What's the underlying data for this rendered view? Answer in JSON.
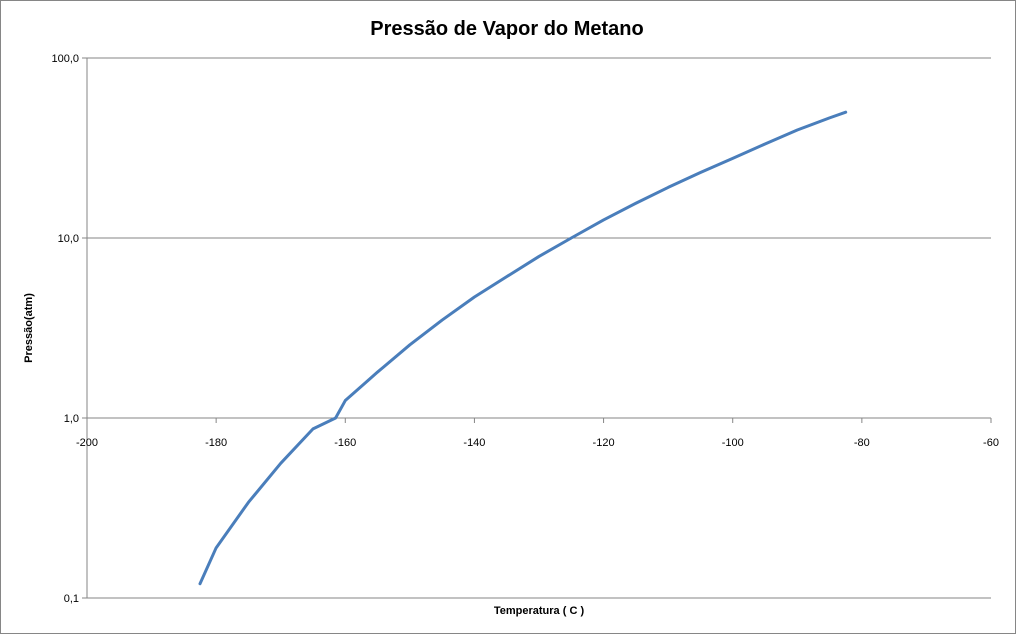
{
  "chart_data": {
    "type": "line",
    "title": "Pressão de Vapor do Metano",
    "xlabel": "Temperatura ( C )",
    "ylabel": "Pressão(atm)",
    "xlim": [
      -200,
      -60
    ],
    "ylim": [
      0.1,
      100
    ],
    "yscale": "log",
    "grid": {
      "horizontal": true,
      "vertical": false
    },
    "line_color": "#4a7ebb",
    "x_ticks": [
      -200,
      -180,
      -160,
      -140,
      -120,
      -100,
      -80,
      -60
    ],
    "x_tick_labels": [
      "-200",
      "-180",
      "-160",
      "-140",
      "-120",
      "-100",
      "-80",
      "-60"
    ],
    "y_ticks": [
      0.1,
      1,
      10,
      100
    ],
    "y_tick_labels": [
      "0,1",
      "1,0",
      "10,0",
      "100,0"
    ],
    "series": [
      {
        "x": [
          -182.5,
          -180,
          -175,
          -170,
          -165,
          -161.5,
          -160,
          -155,
          -150,
          -145,
          -140,
          -135,
          -130,
          -125,
          -120,
          -115,
          -110,
          -105,
          -100,
          -95,
          -90,
          -85,
          -82.5
        ],
        "y": [
          0.12,
          0.19,
          0.34,
          0.56,
          0.87,
          1.0,
          1.25,
          1.8,
          2.55,
          3.5,
          4.7,
          6.1,
          7.9,
          10.0,
          12.6,
          15.6,
          19.1,
          23.1,
          27.7,
          33.3,
          39.8,
          46.5,
          50.0
        ]
      }
    ]
  }
}
